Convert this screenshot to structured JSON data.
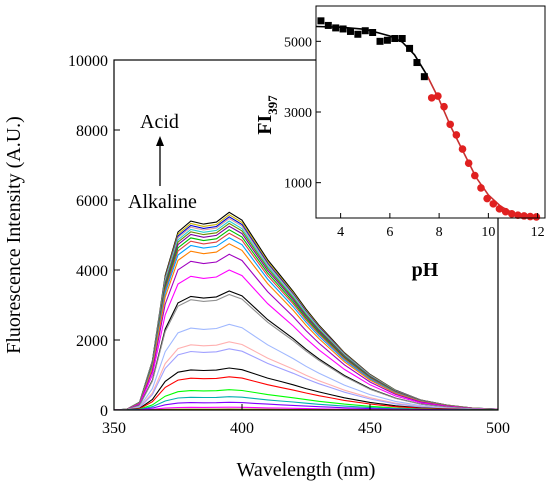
{
  "chart_data": [
    {
      "type": "line",
      "xlabel": "Wavelength (nm)",
      "ylabel": "Fluorescence Intensity (A.U.)",
      "xlim": [
        350,
        500
      ],
      "ylim": [
        0,
        10000
      ],
      "xticks": [
        "350",
        "400",
        "450",
        "500"
      ],
      "yticks": [
        "0",
        "2000",
        "4000",
        "6000",
        "8000",
        "10000"
      ],
      "annotations": {
        "top": "Acid",
        "bottom": "Alkaline",
        "arrow": "up"
      },
      "spectrum_shape": {
        "x": [
          350,
          355,
          360,
          365,
          370,
          375,
          380,
          385,
          390,
          395,
          400,
          405,
          410,
          415,
          420,
          425,
          430,
          435,
          440,
          450,
          460,
          470,
          480,
          490,
          500
        ],
        "relative_intensity": [
          0,
          0.004,
          0.04,
          0.25,
          0.68,
          0.9,
          0.955,
          0.94,
          0.95,
          1.0,
          0.96,
          0.86,
          0.76,
          0.68,
          0.6,
          0.51,
          0.43,
          0.36,
          0.29,
          0.18,
          0.1,
          0.05,
          0.025,
          0.01,
          0.004
        ]
      },
      "series_peaks": [
        5650,
        5580,
        5520,
        5470,
        5400,
        5330,
        5250,
        5150,
        5050,
        4920,
        4750,
        4450,
        4000,
        3400,
        3300,
        2450,
        1950,
        1750,
        1200,
        950,
        580,
        380,
        220,
        80,
        25
      ],
      "series_colors": [
        "#000000",
        "#c8b400",
        "#0000d8",
        "#d4a0a0",
        "#20d0d0",
        "#6a8a00",
        "#7a00a0",
        "#00c000",
        "#e04040",
        "#00a0ff",
        "#ff8000",
        "#a000c0",
        "#ff00ff",
        "#000000",
        "#909090",
        "#a0b8ff",
        "#ffb0b0",
        "#a0a0ff",
        "#000000",
        "#ff0000",
        "#00ff00",
        "#00b0b0",
        "#8000ff",
        "#ff00ff",
        "#808000"
      ]
    },
    {
      "type": "scatter",
      "xlabel": "pH",
      "ylabel": "FI",
      "ylabel_subscript": "397",
      "xlim": [
        3,
        12.3
      ],
      "ylim": [
        0,
        6000
      ],
      "xticks": [
        "4",
        "6",
        "8",
        "10",
        "12"
      ],
      "yticks": [
        "1000",
        "3000",
        "5000"
      ],
      "series": [
        {
          "color": "#000000",
          "x": [
            3.2,
            3.5,
            3.8,
            4.1,
            4.4,
            4.7,
            5.0,
            5.3,
            5.6,
            5.9,
            6.2,
            6.5,
            6.8,
            7.1,
            7.4
          ],
          "y": [
            5580,
            5450,
            5380,
            5350,
            5280,
            5200,
            5300,
            5250,
            5000,
            5030,
            5080,
            5080,
            4800,
            4400,
            4000
          ]
        },
        {
          "color": "#e02020",
          "x": [
            7.7,
            7.95,
            8.2,
            8.45,
            8.7,
            8.95,
            9.2,
            9.45,
            9.7,
            9.95,
            10.2,
            10.45,
            10.7,
            10.95,
            11.2,
            11.45,
            11.7,
            11.95
          ],
          "y": [
            3400,
            3450,
            3150,
            2650,
            2350,
            1950,
            1550,
            1200,
            850,
            550,
            400,
            260,
            180,
            120,
            80,
            60,
            40,
            30
          ]
        }
      ],
      "fit": {
        "x": [
          3.0,
          4.0,
          5.0,
          6.0,
          6.5,
          7.0,
          7.5,
          8.0,
          8.5,
          9.0,
          9.5,
          10.0,
          10.5,
          11.0,
          11.5,
          12.0
        ],
        "y": [
          5420,
          5400,
          5340,
          5150,
          4980,
          4620,
          4050,
          3350,
          2550,
          1850,
          1150,
          650,
          330,
          140,
          55,
          20
        ],
        "colors": {
          "acid_segment": "#000000",
          "alkaline_segment": "#c83030"
        },
        "split_x": 7.7
      }
    }
  ]
}
